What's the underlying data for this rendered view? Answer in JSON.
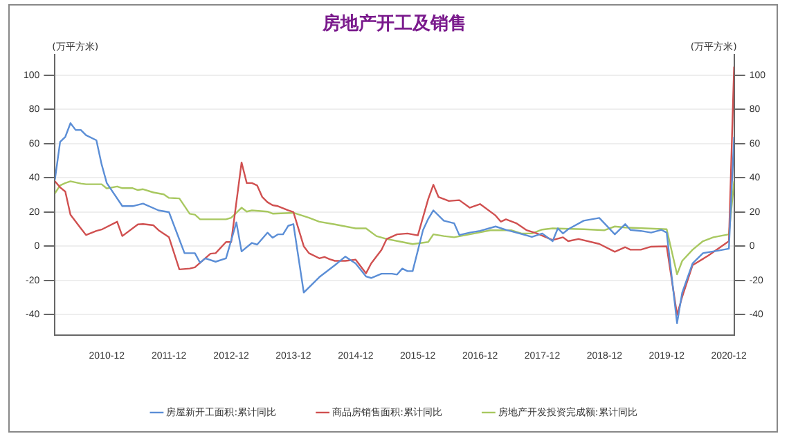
{
  "chart_data": {
    "type": "line",
    "title": "房地产开工及销售",
    "ylabel": "(万平方米)",
    "y2label": "(万平方米)",
    "xlim": [
      "2010-02",
      "2021-01"
    ],
    "xticks": [
      "2010-12",
      "2011-12",
      "2012-12",
      "2013-12",
      "2014-12",
      "2015-12",
      "2016-12",
      "2017-12",
      "2018-12",
      "2019-12",
      "2020-12"
    ],
    "ylim": [
      -52,
      112
    ],
    "yticks": [
      -40,
      -20,
      0,
      20,
      40,
      60,
      80,
      100
    ],
    "y2lim": [
      -52,
      112
    ],
    "y2ticks": [
      -40,
      -20,
      0,
      20,
      40,
      60,
      80,
      100
    ],
    "grid": "y",
    "legend": "bottom",
    "marker": "none",
    "line_style": "solid",
    "series": [
      {
        "name": "房屋新开工面积:累计同比",
        "color": "#5b8ed6",
        "x": [
          "2010-02",
          "2010-03",
          "2010-04",
          "2010-05",
          "2010-06",
          "2010-07",
          "2010-08",
          "2010-10",
          "2010-11",
          "2010-12",
          "2011-03",
          "2011-05",
          "2011-07",
          "2011-10",
          "2011-12",
          "2012-03",
          "2012-05",
          "2012-06",
          "2012-07",
          "2012-09",
          "2012-11",
          "2013-01",
          "2013-02",
          "2013-04",
          "2013-05",
          "2013-07",
          "2013-08",
          "2013-09",
          "2013-10",
          "2013-11",
          "2013-12",
          "2014-02",
          "2014-05",
          "2014-08",
          "2014-10",
          "2014-12",
          "2015-02",
          "2015-03",
          "2015-05",
          "2015-07",
          "2015-08",
          "2015-09",
          "2015-10",
          "2015-11",
          "2016-01",
          "2016-02",
          "2016-03",
          "2016-05",
          "2016-07",
          "2016-08",
          "2016-10",
          "2016-12",
          "2017-03",
          "2017-05",
          "2017-07",
          "2017-10",
          "2017-12",
          "2018-02",
          "2018-03",
          "2018-04",
          "2018-05",
          "2018-08",
          "2018-11",
          "2019-02",
          "2019-04",
          "2019-05",
          "2019-07",
          "2019-09",
          "2019-11",
          "2019-12",
          "2020-02",
          "2020-03",
          "2020-05",
          "2020-07",
          "2020-10",
          "2020-12",
          "2021-01"
        ],
        "values": [
          39,
          61,
          64,
          72,
          68,
          68,
          65,
          62,
          48,
          37,
          23.5,
          23.5,
          25,
          21,
          20,
          -4,
          -4,
          -9.6,
          -7,
          -9,
          -7,
          14,
          -3,
          2,
          1,
          8,
          5,
          7,
          7,
          12,
          13,
          -27,
          -18,
          -11,
          -6,
          -10,
          -17.6,
          -18.5,
          -16,
          -16,
          -16.5,
          -13,
          -14.5,
          -14.5,
          9.5,
          16,
          21,
          15,
          13.5,
          6.6,
          8,
          9,
          11.6,
          9.6,
          8,
          5.5,
          7.5,
          3,
          10.5,
          7.5,
          10,
          15,
          16.6,
          7,
          13,
          9.6,
          9,
          8,
          9.6,
          8,
          -45,
          -27,
          -10,
          -4,
          -2.5,
          -1.4,
          64
        ]
      },
      {
        "name": "商品房销售面积:累计同比",
        "color": "#d05050",
        "x": [
          "2010-02",
          "2010-03",
          "2010-04",
          "2010-05",
          "2010-07",
          "2010-08",
          "2010-10",
          "2010-11",
          "2011-02",
          "2011-03",
          "2011-06",
          "2011-07",
          "2011-09",
          "2011-10",
          "2011-12",
          "2012-02",
          "2012-04",
          "2012-05",
          "2012-08",
          "2012-09",
          "2012-11",
          "2012-12",
          "2013-02",
          "2013-03",
          "2013-04",
          "2013-05",
          "2013-06",
          "2013-07",
          "2013-08",
          "2013-09",
          "2013-11",
          "2013-12",
          "2014-02",
          "2014-03",
          "2014-05",
          "2014-06",
          "2014-07",
          "2014-08",
          "2014-10",
          "2014-12",
          "2015-02",
          "2015-03",
          "2015-05",
          "2015-06",
          "2015-08",
          "2015-10",
          "2015-12",
          "2016-02",
          "2016-03",
          "2016-04",
          "2016-06",
          "2016-08",
          "2016-10",
          "2016-12",
          "2017-03",
          "2017-04",
          "2017-05",
          "2017-07",
          "2017-09",
          "2017-11",
          "2018-02",
          "2018-04",
          "2018-05",
          "2018-07",
          "2018-11",
          "2019-02",
          "2019-04",
          "2019-05",
          "2019-07",
          "2019-09",
          "2019-12",
          "2020-02",
          "2020-03",
          "2020-05",
          "2020-08",
          "2020-12",
          "2021-01"
        ],
        "values": [
          38,
          34.5,
          32,
          18.5,
          10.5,
          6.6,
          9,
          9.8,
          14.4,
          6,
          12.8,
          13,
          12.3,
          9.4,
          5.3,
          -13.5,
          -13,
          -12.3,
          -4.3,
          -4,
          2.5,
          2.5,
          49,
          37,
          37,
          35.6,
          28.8,
          25.8,
          24,
          23.5,
          21,
          20,
          0,
          -4,
          -7,
          -6.2,
          -7.5,
          -8.5,
          -8.5,
          -7.8,
          -15.8,
          -10,
          -2,
          4.3,
          7,
          7.5,
          6.4,
          27.6,
          36,
          28.8,
          26.5,
          27,
          22.6,
          24.7,
          18,
          14.4,
          15.8,
          13.5,
          9.4,
          7.5,
          3.7,
          5.3,
          3,
          4.3,
          1.4,
          -3.2,
          -0.5,
          -2,
          -2,
          -0.2,
          0,
          -40,
          -29.5,
          -11,
          -5.5,
          3,
          105
        ]
      },
      {
        "name": "房地产开发投资完成额:累计同比",
        "color": "#a8c860",
        "x": [
          "2010-02",
          "2010-03",
          "2010-04",
          "2010-05",
          "2010-07",
          "2010-08",
          "2010-11",
          "2010-12",
          "2011-02",
          "2011-03",
          "2011-05",
          "2011-06",
          "2011-07",
          "2011-09",
          "2011-11",
          "2011-12",
          "2012-02",
          "2012-04",
          "2012-05",
          "2012-06",
          "2012-09",
          "2012-11",
          "2012-12",
          "2013-02",
          "2013-03",
          "2013-04",
          "2013-07",
          "2013-08",
          "2013-12",
          "2014-03",
          "2014-05",
          "2014-08",
          "2014-12",
          "2015-02",
          "2015-04",
          "2015-06",
          "2015-09",
          "2015-11",
          "2016-02",
          "2016-03",
          "2016-05",
          "2016-07",
          "2016-10",
          "2017-02",
          "2017-06",
          "2017-08",
          "2017-10",
          "2017-12",
          "2018-02",
          "2018-08",
          "2018-12",
          "2019-02",
          "2019-04",
          "2019-08",
          "2019-12",
          "2020-02",
          "2020-03",
          "2020-05",
          "2020-07",
          "2020-09",
          "2020-12",
          "2021-01"
        ],
        "values": [
          31,
          35.6,
          37,
          38,
          36.7,
          36.3,
          36.3,
          33.8,
          35,
          34,
          34,
          32.9,
          33.4,
          31.5,
          30.4,
          28.3,
          28,
          19,
          18.5,
          15.8,
          15.8,
          15.8,
          16.7,
          22.6,
          20.3,
          21,
          20.3,
          19.1,
          19.6,
          16.7,
          14.4,
          12.8,
          10.5,
          10.5,
          6,
          4.3,
          2.5,
          1.3,
          2.5,
          7,
          6,
          5.3,
          7,
          9.4,
          9.4,
          7.5,
          7.5,
          9.8,
          10.5,
          10,
          9.4,
          11.6,
          11,
          10.5,
          10,
          -16.4,
          -8.5,
          -2,
          3,
          5.3,
          7,
          38
        ]
      }
    ]
  }
}
